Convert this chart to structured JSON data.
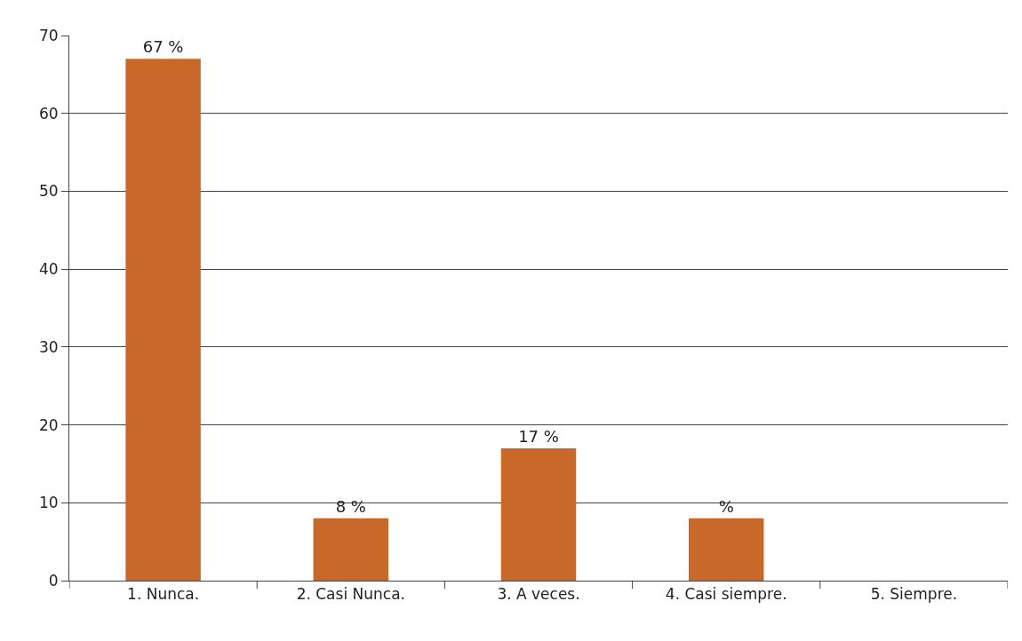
{
  "chart_data": {
    "type": "bar",
    "categories": [
      "1. Nunca.",
      "2. Casi Nunca.",
      "3. A veces.",
      "4. Casi siempre.",
      "5. Siempre."
    ],
    "values": [
      67,
      8,
      17,
      8,
      0
    ],
    "value_labels": [
      "67 %",
      "8 %",
      "17 %",
      "%",
      null
    ],
    "color": "#c8692a",
    "ylim": [
      0,
      70
    ],
    "yticks": [
      0,
      10,
      20,
      30,
      40,
      50,
      60,
      70
    ],
    "grid": "y"
  }
}
